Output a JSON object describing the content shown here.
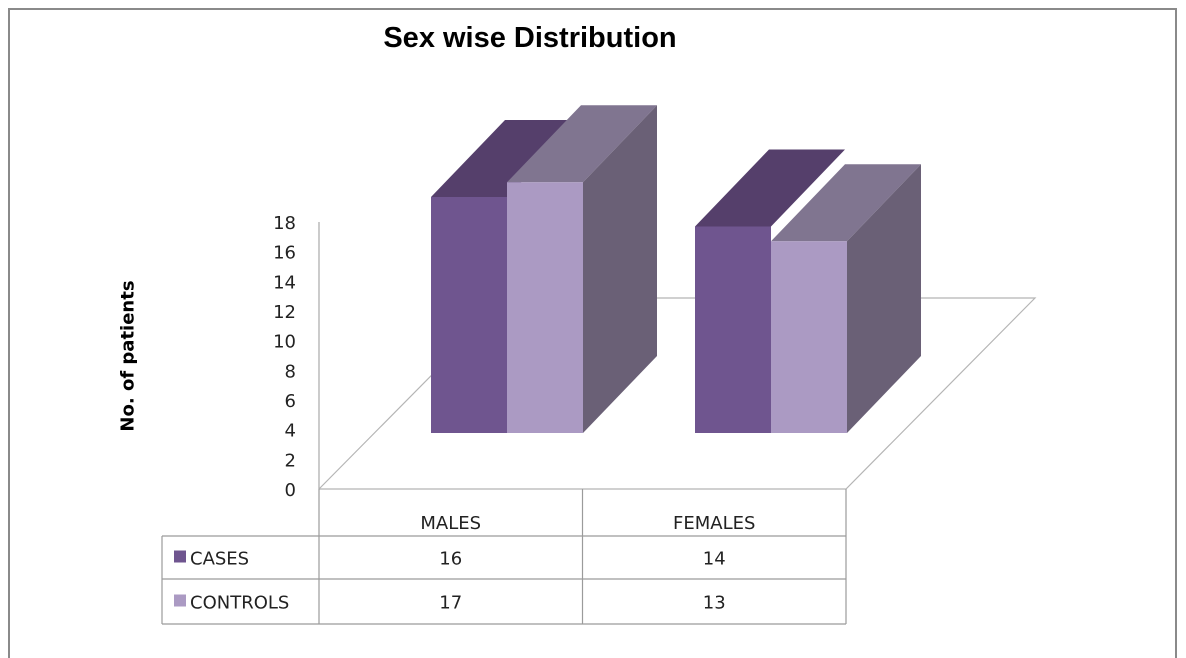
{
  "chart_data": {
    "type": "bar",
    "title": "Sex wise Distribution",
    "xlabel": "",
    "ylabel": "No. of patients",
    "categories": [
      "MALES",
      "FEMALES"
    ],
    "series": [
      {
        "name": "CASES",
        "values": [
          16,
          14
        ],
        "color": "#6f558f",
        "top_color": "#553f6b",
        "side_color": "#5a4476"
      },
      {
        "name": "CONTROLS",
        "values": [
          17,
          13
        ],
        "color": "#ab9ac3",
        "top_color": "#807590",
        "side_color": "#6a6076"
      }
    ],
    "ylim": [
      0,
      18
    ],
    "yticks": [
      0,
      2,
      4,
      6,
      8,
      10,
      12,
      14,
      16,
      18
    ],
    "grid": false,
    "legend": "data-table",
    "data_table": true,
    "style": "3d-column"
  }
}
